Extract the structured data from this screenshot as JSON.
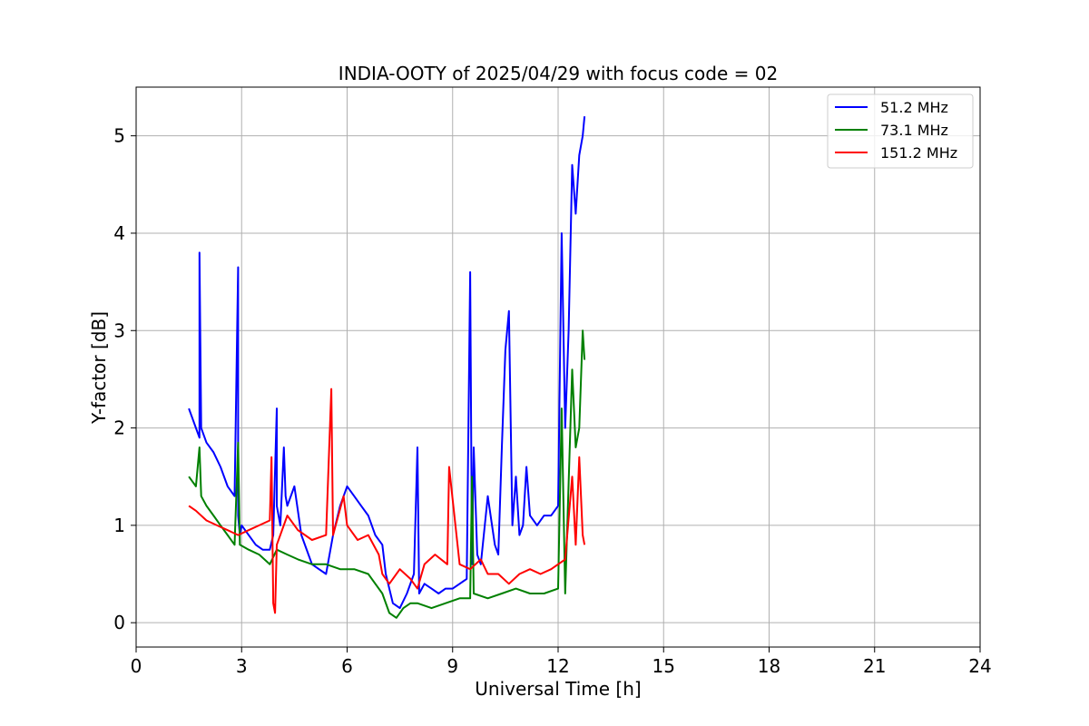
{
  "chart_data": {
    "type": "line",
    "title": "INDIA-OOTY of 2025/04/29 with focus code = 02",
    "xlabel": "Universal Time [h]",
    "ylabel": "Y-factor [dB]",
    "xlim": [
      0,
      24
    ],
    "ylim": [
      -0.25,
      5.5
    ],
    "xticks": [
      0,
      3,
      6,
      9,
      12,
      15,
      18,
      21,
      24
    ],
    "yticks": [
      0,
      1,
      2,
      3,
      4,
      5
    ],
    "grid": true,
    "legend_position": "top-right",
    "series": [
      {
        "name": "51.2 MHz",
        "color": "#0000ff",
        "x": [
          1.5,
          1.6,
          1.7,
          1.8,
          1.8,
          1.85,
          2.0,
          2.2,
          2.4,
          2.6,
          2.8,
          2.9,
          2.9,
          2.95,
          3.0,
          3.2,
          3.4,
          3.6,
          3.8,
          3.9,
          4.0,
          4.0,
          4.1,
          4.2,
          4.25,
          4.3,
          4.5,
          4.7,
          4.9,
          5.0,
          5.2,
          5.4,
          5.6,
          5.8,
          6.0,
          6.2,
          6.4,
          6.6,
          6.8,
          7.0,
          7.1,
          7.3,
          7.5,
          7.7,
          7.9,
          8.0,
          8.05,
          8.2,
          8.4,
          8.6,
          8.8,
          9.0,
          9.2,
          9.4,
          9.5,
          9.55,
          9.6,
          9.7,
          9.8,
          10.0,
          10.2,
          10.3,
          10.4,
          10.5,
          10.6,
          10.7,
          10.8,
          10.9,
          11.0,
          11.1,
          11.2,
          11.4,
          11.6,
          11.8,
          12.0,
          12.1,
          12.2,
          12.3,
          12.4,
          12.5,
          12.6,
          12.7,
          12.75
        ],
        "y": [
          2.2,
          2.1,
          2.0,
          1.9,
          3.8,
          2.0,
          1.85,
          1.75,
          1.6,
          1.4,
          1.3,
          3.65,
          1.1,
          0.9,
          1.0,
          0.9,
          0.8,
          0.75,
          0.75,
          0.9,
          2.2,
          1.2,
          1.0,
          1.8,
          1.3,
          1.2,
          1.4,
          0.9,
          0.7,
          0.6,
          0.55,
          0.5,
          0.9,
          1.2,
          1.4,
          1.3,
          1.2,
          1.1,
          0.9,
          0.8,
          0.5,
          0.2,
          0.15,
          0.3,
          0.5,
          1.8,
          0.3,
          0.4,
          0.35,
          0.3,
          0.35,
          0.35,
          0.4,
          0.45,
          3.6,
          0.6,
          1.8,
          0.7,
          0.6,
          1.3,
          0.8,
          0.7,
          1.8,
          2.8,
          3.2,
          1.0,
          1.5,
          0.9,
          1.0,
          1.6,
          1.1,
          1.0,
          1.1,
          1.1,
          1.2,
          4.0,
          2.0,
          3.0,
          4.7,
          4.2,
          4.8,
          5.0,
          5.2
        ]
      },
      {
        "name": "73.1 MHz",
        "color": "#008000",
        "x": [
          1.5,
          1.7,
          1.8,
          1.85,
          2.0,
          2.2,
          2.4,
          2.6,
          2.8,
          2.9,
          2.95,
          3.2,
          3.5,
          3.8,
          4.0,
          4.3,
          4.6,
          5.0,
          5.4,
          5.8,
          6.2,
          6.6,
          7.0,
          7.2,
          7.4,
          7.6,
          7.8,
          8.0,
          8.4,
          8.8,
          9.2,
          9.5,
          9.55,
          9.6,
          10.0,
          10.4,
          10.8,
          11.2,
          11.6,
          12.0,
          12.1,
          12.2,
          12.4,
          12.5,
          12.6,
          12.7,
          12.75
        ],
        "y": [
          1.5,
          1.4,
          1.8,
          1.3,
          1.2,
          1.1,
          1.0,
          0.9,
          0.8,
          1.85,
          0.8,
          0.75,
          0.7,
          0.6,
          0.75,
          0.7,
          0.65,
          0.6,
          0.6,
          0.55,
          0.55,
          0.5,
          0.3,
          0.1,
          0.05,
          0.15,
          0.2,
          0.2,
          0.15,
          0.2,
          0.25,
          0.25,
          1.5,
          0.3,
          0.25,
          0.3,
          0.35,
          0.3,
          0.3,
          0.35,
          2.2,
          0.3,
          2.6,
          1.8,
          2.0,
          3.0,
          2.7
        ]
      },
      {
        "name": "151.2 MHz",
        "color": "#ff0000",
        "x": [
          1.5,
          1.7,
          2.0,
          2.3,
          2.6,
          2.9,
          3.2,
          3.5,
          3.8,
          3.85,
          3.9,
          3.95,
          4.0,
          4.3,
          4.6,
          5.0,
          5.4,
          5.55,
          5.6,
          5.9,
          6.0,
          6.3,
          6.6,
          6.9,
          7.0,
          7.2,
          7.5,
          7.8,
          8.0,
          8.2,
          8.5,
          8.85,
          8.9,
          9.2,
          9.5,
          9.8,
          10.0,
          10.3,
          10.6,
          10.9,
          11.2,
          11.5,
          11.8,
          12.0,
          12.2,
          12.4,
          12.5,
          12.6,
          12.7,
          12.75
        ],
        "y": [
          1.2,
          1.15,
          1.05,
          1.0,
          0.95,
          0.9,
          0.95,
          1.0,
          1.05,
          1.7,
          0.2,
          0.1,
          0.8,
          1.1,
          0.95,
          0.85,
          0.9,
          2.4,
          0.9,
          1.3,
          1.0,
          0.85,
          0.9,
          0.7,
          0.5,
          0.4,
          0.55,
          0.45,
          0.35,
          0.6,
          0.7,
          0.6,
          1.6,
          0.6,
          0.55,
          0.65,
          0.5,
          0.5,
          0.4,
          0.5,
          0.55,
          0.5,
          0.55,
          0.6,
          0.65,
          1.5,
          0.8,
          1.7,
          0.9,
          0.8
        ]
      }
    ]
  }
}
